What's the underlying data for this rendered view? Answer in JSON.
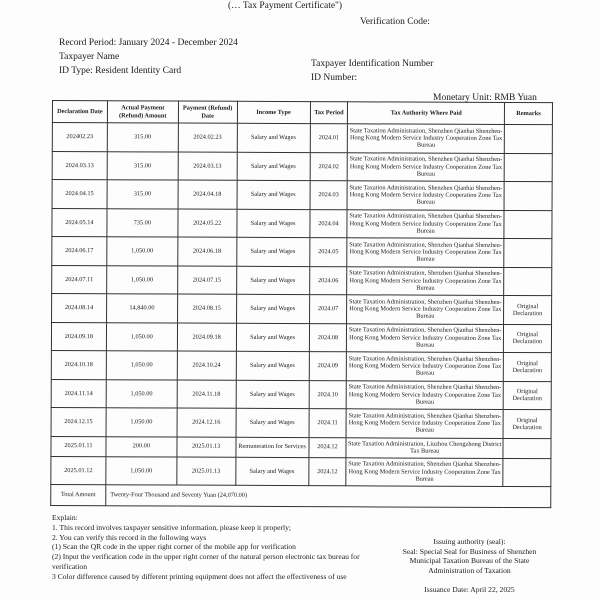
{
  "header": {
    "certificate_title": "(… Tax Payment Certificate\")",
    "verification_code_label": "Verification Code:",
    "record_period": "Record Period: January 2024 - December 2024",
    "taxpayer_name_label": "Taxpayer Name",
    "id_type": "ID Type: Resident Identity Card",
    "tin_label": "Taxpayer Identification Number",
    "id_number_label": "ID Number:",
    "monetary_unit": "Monetary Unit: RMB Yuan"
  },
  "table": {
    "columns": [
      "Declaration Date",
      "Actual Payment (Refund) Amount",
      "Payment (Refund) Date",
      "Income Type",
      "Tax Period",
      "Tax Authority Where Paid",
      "Remarks"
    ],
    "rows": [
      [
        "202402.23",
        "315.00",
        "2024.02.23",
        "Salary and Wages",
        "2024.01",
        "State Taxation Administration, Shenzhen Qianhai Shenzhen-Hong Kong Modern Service Industry Cooperation Zone Tax Bureau",
        ""
      ],
      [
        "2024.03.13",
        "315.00",
        "2024.03.13",
        "Salary and Wages",
        "2024.02",
        "State Taxation Administration, Shenzhen Qianhai Shenzhen-Hong Kong Modern Service Industry Cooperation Zone Tax Bureau",
        ""
      ],
      [
        "2024.04.15",
        "315.00",
        "2024.04.18",
        "Salary and Wages",
        "2024.03",
        "State Taxation Administration, Shenzhen Qianhai Shenzhen-Hong Kong Modern Service Industry Cooperation Zone Tax Bureau",
        ""
      ],
      [
        "2024.05.14",
        "735.00",
        "2024.05.22",
        "Salary and Wages",
        "2024.04",
        "State Taxation Administration, Shenzhen Qianhai Shenzhen-Hong Kong Modern Service Industry Cooperation Zone Tax Bureau",
        ""
      ],
      [
        "2024.06.17",
        "1,050.00",
        "2024.06.18",
        "Salary and Wages",
        "2024.05",
        "State Taxation Administration, Shenzhen Qianhai Shenzhen-Hong Kong Modern Service Industry Cooperation Zone Tax Bureau",
        ""
      ],
      [
        "2024.07.11",
        "1,050.00",
        "2024.07.15",
        "Salary and Wages",
        "2024.06",
        "State Taxation Administration, Shenzhen Qianhai Shenzhen-Hong Kong Modern Service Industry Cooperation Zone Tax Bureau",
        ""
      ],
      [
        "2024.08.14",
        "14,840.00",
        "2024.08.15",
        "Salary and Wages",
        "2024.07",
        "State Taxation Administration, Shenzhen Qianhai Shenzhen-Hong Kong Modern Service Industry Cooperation Zone Tax Bureau",
        "Original Declaration"
      ],
      [
        "2024.09.18",
        "1,050.00",
        "2024.09.18",
        "Salary and Wages",
        "2024.08",
        "State Taxation Administration, Shenzhen Qianhai Shenzhen-Hong Kong Modern Service Industry Cooperation Zone Tax Bureau",
        "Original Declaration"
      ],
      [
        "2024.10.18",
        "1,050.00",
        "2024.10.24",
        "Salary and Wages",
        "2024.09",
        "State Taxation Administration, Shenzhen Qianhai Shenzhen-Hong Kong Modern Service Industry Cooperation Zone Tax Bureau",
        "Original Declaration"
      ],
      [
        "2024.11.14",
        "1,050.00",
        "2024.11.18",
        "Salary and Wages",
        "2024.10",
        "State Taxation Administration, Shenzhen Qianhai Shenzhen-Hong Kong Modern Service Industry Cooperation Zone Tax Bureau",
        "Original Declaration"
      ],
      [
        "2024.12.15",
        "1,050.00",
        "2024.12.16",
        "Salary and Wages",
        "2024.11",
        "State Taxation Administration, Shenzhen Qianhai Shenzhen-Hong Kong Modern Service Industry Cooperation Zone Tax Bureau",
        "Original Declaration"
      ],
      [
        "2025.01.11",
        "200.00",
        "2025.01.13",
        "Remuneration for Services",
        "2024.12",
        "State Taxation Administration, Liuzhou Chengzhong District Tax Bureau",
        ""
      ],
      [
        "2025.01.12",
        "1,050.00",
        "2025.01.13",
        "Salary and Wages",
        "2024.12",
        "State Taxation Administration, Shenzhen Qianhai Shenzhen-Hong Kong Modern Service Industry Cooperation Zone Tax Bureau",
        ""
      ]
    ],
    "total_label": "Total Amount",
    "total_value": "Twenty-Four Thousand and Seventy Yuan (24,070.00)"
  },
  "explain": {
    "title": "Explain:",
    "lines": [
      "1. This record involves taxpayer sensitive information, please keep it properly;",
      "2. You can verify this record in the following ways",
      "(1) Scan the QR code in the upper right corner of the mobile app for verification",
      "(2) Input the verification code in the upper right corner of the natural person electronic tax bureau for verification",
      "3 Color difference caused by different printing equipment does not affect the effectiveness of use"
    ]
  },
  "seal": {
    "label": "Issuing authority (seal):",
    "text": "Seal: Special Seal for Business of Shenzhen Municipal Taxation Bureau of the State Administration of Taxation",
    "issuance_date": "Issuance Date: April 22, 2025"
  }
}
